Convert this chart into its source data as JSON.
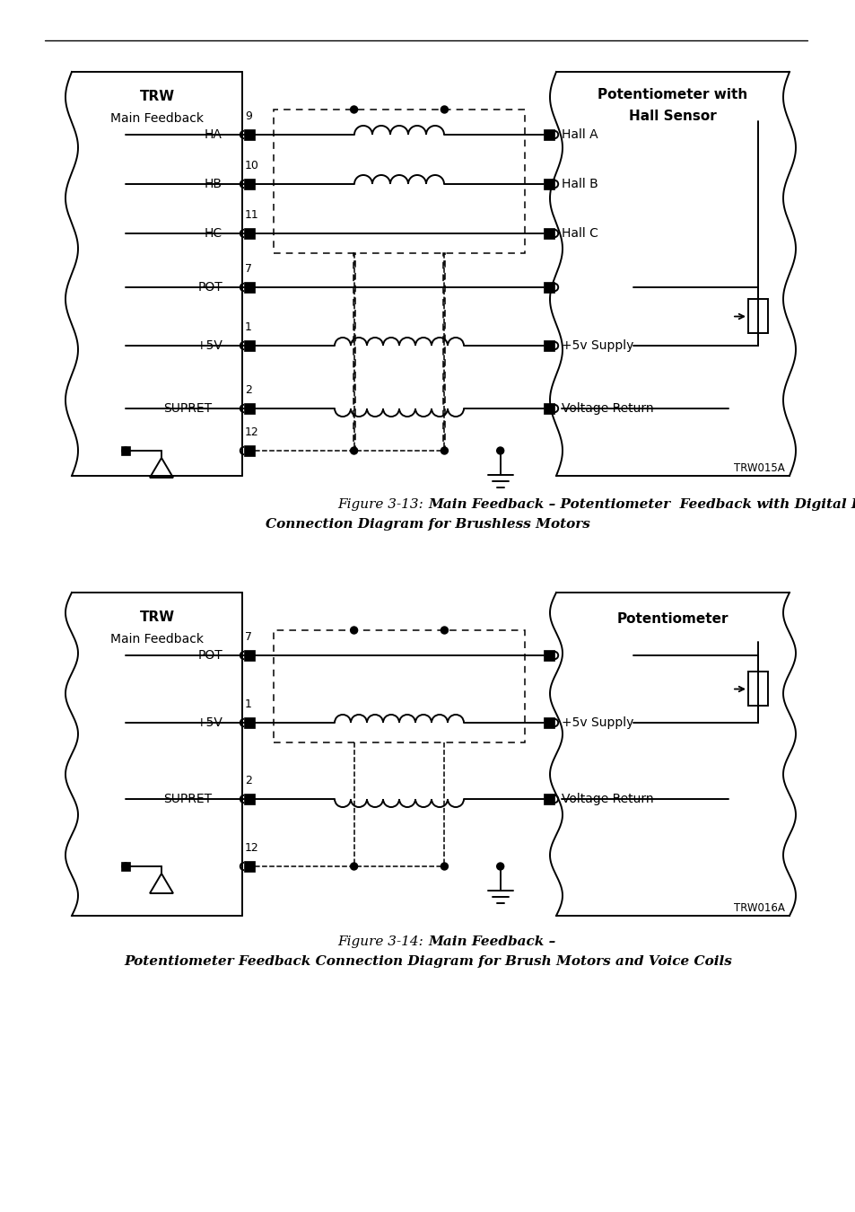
{
  "bg_color": "#ffffff",
  "line_color": "#000000",
  "trw015a": "TRW015A",
  "trw016a": "TRW016A",
  "fig1_pre": "Figure 3-13: ",
  "fig1_bold1": "Main Feedback – Potentiometer  Feedback with Digital Hall Sensor",
  "fig1_bold2": "Connection Diagram for Brushless Motors",
  "fig2_pre": "Figure 3-14: ",
  "fig2_bold1": "Main Feedback –",
  "fig2_bold2": "Potentiometer Feedback Connection Diagram for Brush Motors and Voice Coils"
}
